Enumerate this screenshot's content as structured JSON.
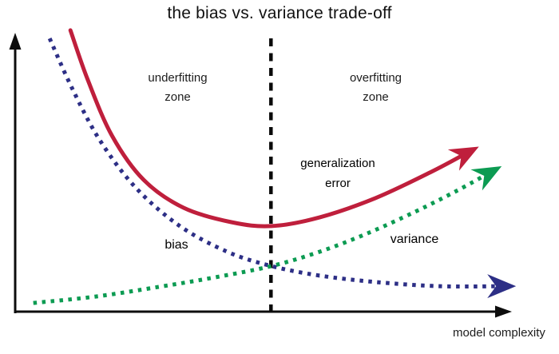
{
  "title": "the bias vs. variance trade-off",
  "annotations": {
    "underfitting_zone": {
      "line1": "underfitting",
      "line2": "zone"
    },
    "overfitting_zone": {
      "line1": "overfitting",
      "line2": "zone"
    },
    "generalization_error": {
      "line1": "generalization",
      "line2": "error"
    },
    "bias_label": "bias",
    "variance_label": "variance",
    "x_axis_label": "model complexity"
  },
  "colors": {
    "generalization_error": "#bf1f3c",
    "bias": "#2d2f86",
    "variance": "#0c9b52",
    "axis": "#0d0d0d",
    "threshold_line": "#0a0a0a",
    "title_text": "#111111",
    "zone_text": "#1c1c1c"
  },
  "chart_data": {
    "type": "line",
    "title": "the bias vs. variance trade-off",
    "xlabel": "model complexity",
    "ylabel": "",
    "x_range": [
      0,
      10
    ],
    "y_range": [
      0,
      10
    ],
    "grid": false,
    "axes_quantified": false,
    "threshold_x": 5.15,
    "zones": [
      {
        "label": "underfitting zone",
        "x_range": [
          0,
          5.15
        ]
      },
      {
        "label": "overfitting zone",
        "x_range": [
          5.15,
          10
        ]
      }
    ],
    "series": [
      {
        "name": "generalization error",
        "color": "#bf1f3c",
        "style": "solid",
        "arrowhead": true,
        "points": [
          [
            1.1,
            10.06
          ],
          [
            1.45,
            8.29
          ],
          [
            1.94,
            6.29
          ],
          [
            2.58,
            4.71
          ],
          [
            3.39,
            3.71
          ],
          [
            4.35,
            3.2
          ],
          [
            5.16,
            3.06
          ],
          [
            6.13,
            3.37
          ],
          [
            7.26,
            4.06
          ],
          [
            8.39,
            5.0
          ],
          [
            9.35,
            5.9
          ]
        ]
      },
      {
        "name": "bias",
        "color": "#2d2f86",
        "style": "dotted",
        "arrowhead": true,
        "points": [
          [
            0.68,
            9.77
          ],
          [
            1.13,
            8.0
          ],
          [
            1.69,
            6.14
          ],
          [
            2.42,
            4.43
          ],
          [
            3.31,
            3.06
          ],
          [
            4.27,
            2.14
          ],
          [
            5.16,
            1.63
          ],
          [
            6.13,
            1.29
          ],
          [
            7.26,
            1.06
          ],
          [
            8.55,
            0.91
          ],
          [
            10.1,
            0.91
          ]
        ]
      },
      {
        "name": "variance",
        "color": "#0c9b52",
        "style": "dotted",
        "arrowhead": true,
        "points": [
          [
            0.35,
            0.31
          ],
          [
            1.61,
            0.54
          ],
          [
            2.9,
            0.89
          ],
          [
            4.03,
            1.23
          ],
          [
            5.16,
            1.63
          ],
          [
            6.13,
            2.14
          ],
          [
            7.1,
            2.8
          ],
          [
            8.06,
            3.57
          ],
          [
            8.87,
            4.29
          ],
          [
            9.81,
            5.2
          ]
        ]
      }
    ]
  }
}
